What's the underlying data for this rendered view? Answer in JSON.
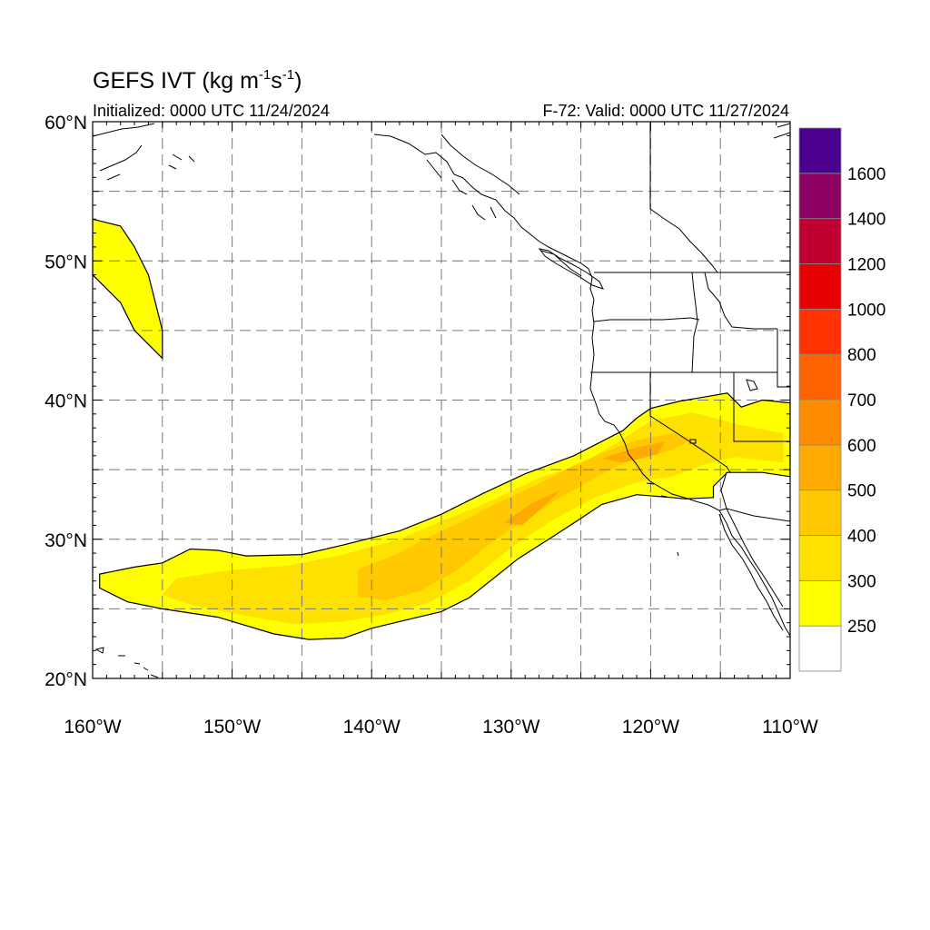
{
  "title": {
    "main": "GEFS IVT (kg m",
    "exp1": "-1",
    "mid": "s",
    "exp2": "-1",
    "end": ")"
  },
  "initialized": "Initialized: 0000 UTC 11/24/2024",
  "valid": "F-72: Valid: 0000 UTC 11/27/2024",
  "axes": {
    "lon_range": [
      -160,
      -110
    ],
    "lat_range": [
      20,
      60
    ],
    "lon_ticks": [
      "160°W",
      "150°W",
      "140°W",
      "130°W",
      "120°W",
      "110°W"
    ],
    "lat_ticks": [
      "60°N",
      "50°N",
      "40°N",
      "30°N",
      "20°N"
    ],
    "grid": "dashed every 5 degrees"
  },
  "colorbar": {
    "labels": [
      "250",
      "300",
      "400",
      "500",
      "600",
      "700",
      "800",
      "1000",
      "1200",
      "1400",
      "1600"
    ],
    "colors": [
      "#ffffff",
      "#ffff00",
      "#ffe100",
      "#ffc800",
      "#ffaa00",
      "#ff8c00",
      "#ff6400",
      "#ff3200",
      "#e60000",
      "#c00030",
      "#8b0060",
      "#4b0090"
    ]
  },
  "chart_data": {
    "type": "heatmap",
    "variable": "IVT",
    "units": "kg m-1 s-1",
    "levels": [
      250,
      300,
      400,
      500,
      600,
      700,
      800,
      1000,
      1200,
      1400,
      1600
    ],
    "features": [
      {
        "level": "250-300",
        "polygon": [
          [
            -160,
            53
          ],
          [
            -158,
            52.5
          ],
          [
            -157,
            51
          ],
          [
            -156,
            49
          ],
          [
            -155.5,
            47
          ],
          [
            -155,
            45
          ],
          [
            -155,
            43
          ],
          [
            -156,
            44
          ],
          [
            -157,
            45
          ],
          [
            -158,
            47
          ],
          [
            -159,
            48
          ],
          [
            -160,
            49
          ]
        ]
      },
      {
        "level": "250-300",
        "polygon": [
          [
            -159.5,
            27.5
          ],
          [
            -157,
            28
          ],
          [
            -155,
            28.3
          ],
          [
            -153,
            29.3
          ],
          [
            -151,
            29.2
          ],
          [
            -149,
            28.8
          ],
          [
            -145,
            28.9
          ],
          [
            -142,
            29.6
          ],
          [
            -138,
            30.6
          ],
          [
            -135,
            31.8
          ],
          [
            -132,
            33.3
          ],
          [
            -129,
            34.7
          ],
          [
            -125.5,
            36
          ],
          [
            -122,
            37.8
          ],
          [
            -121,
            38.7
          ],
          [
            -120,
            39.4
          ],
          [
            -118,
            39.9
          ],
          [
            -114.5,
            40.5
          ],
          [
            -113.5,
            39.5
          ],
          [
            -112,
            40
          ],
          [
            -110,
            39.8
          ],
          [
            -110,
            34.5
          ],
          [
            -112,
            34.8
          ],
          [
            -114.5,
            34.8
          ],
          [
            -115.5,
            33.8
          ],
          [
            -115.5,
            33
          ],
          [
            -117.5,
            32.9
          ],
          [
            -118.5,
            33
          ],
          [
            -121,
            33.2
          ],
          [
            -123.5,
            32.5
          ],
          [
            -125,
            31.5
          ],
          [
            -127,
            30.2
          ],
          [
            -129.5,
            28.6
          ],
          [
            -131.5,
            27
          ],
          [
            -133,
            25.8
          ],
          [
            -135,
            24.8
          ],
          [
            -137.5,
            24.2
          ],
          [
            -140,
            23.6
          ],
          [
            -142,
            22.9
          ],
          [
            -144.5,
            22.8
          ],
          [
            -147,
            23.2
          ],
          [
            -151,
            24.4
          ],
          [
            -155,
            25
          ],
          [
            -157.5,
            25.5
          ],
          [
            -159.5,
            26.5
          ]
        ]
      },
      {
        "level": "300-400",
        "polygon": [
          [
            -154,
            27.2
          ],
          [
            -150,
            27.8
          ],
          [
            -146,
            28.1
          ],
          [
            -142,
            28.9
          ],
          [
            -138,
            30
          ],
          [
            -135,
            31.3
          ],
          [
            -132,
            32.5
          ],
          [
            -128,
            34.4
          ],
          [
            -125,
            35.4
          ],
          [
            -122,
            37.2
          ],
          [
            -120,
            38.5
          ],
          [
            -117,
            39.1
          ],
          [
            -113.5,
            38.2
          ],
          [
            -110.5,
            37.6
          ],
          [
            -110.5,
            35.5
          ],
          [
            -114,
            35.9
          ],
          [
            -116,
            35.4
          ],
          [
            -118.5,
            34.5
          ],
          [
            -121,
            34.1
          ],
          [
            -124,
            33
          ],
          [
            -127,
            31.4
          ],
          [
            -130,
            29.4
          ],
          [
            -133,
            27
          ],
          [
            -136,
            25.4
          ],
          [
            -139,
            24.6
          ],
          [
            -142,
            24.1
          ],
          [
            -145.5,
            23.9
          ],
          [
            -149,
            24.5
          ],
          [
            -153,
            25.3
          ],
          [
            -155,
            26
          ]
        ]
      },
      {
        "level": "400-500",
        "polygon": [
          [
            -141,
            27.8
          ],
          [
            -138.5,
            28.8
          ],
          [
            -136,
            30.1
          ],
          [
            -133.5,
            31.3
          ],
          [
            -131,
            32.6
          ],
          [
            -128,
            34
          ],
          [
            -125.5,
            35.3
          ],
          [
            -123,
            36.4
          ],
          [
            -121,
            37.1
          ],
          [
            -118.5,
            37.6
          ],
          [
            -117,
            37.2
          ],
          [
            -118.5,
            36.4
          ],
          [
            -121.5,
            35.7
          ],
          [
            -124,
            34.4
          ],
          [
            -126.5,
            33
          ],
          [
            -129,
            31.4
          ],
          [
            -131.5,
            29.7
          ],
          [
            -134,
            27.7
          ],
          [
            -136.5,
            26.3
          ],
          [
            -139,
            25.6
          ],
          [
            -141,
            25.9
          ]
        ]
      },
      {
        "level": "500-600",
        "polygon": [
          [
            -130.5,
            31.2
          ],
          [
            -128.5,
            32.6
          ],
          [
            -126.5,
            33.5
          ],
          [
            -127.5,
            32.5
          ],
          [
            -129.2,
            31
          ]
        ]
      },
      {
        "level": "500-600",
        "polygon": [
          [
            -123.5,
            35.8
          ],
          [
            -121,
            36.6
          ],
          [
            -119,
            37
          ],
          [
            -119.5,
            36.1
          ],
          [
            -122,
            35.5
          ]
        ]
      }
    ]
  }
}
